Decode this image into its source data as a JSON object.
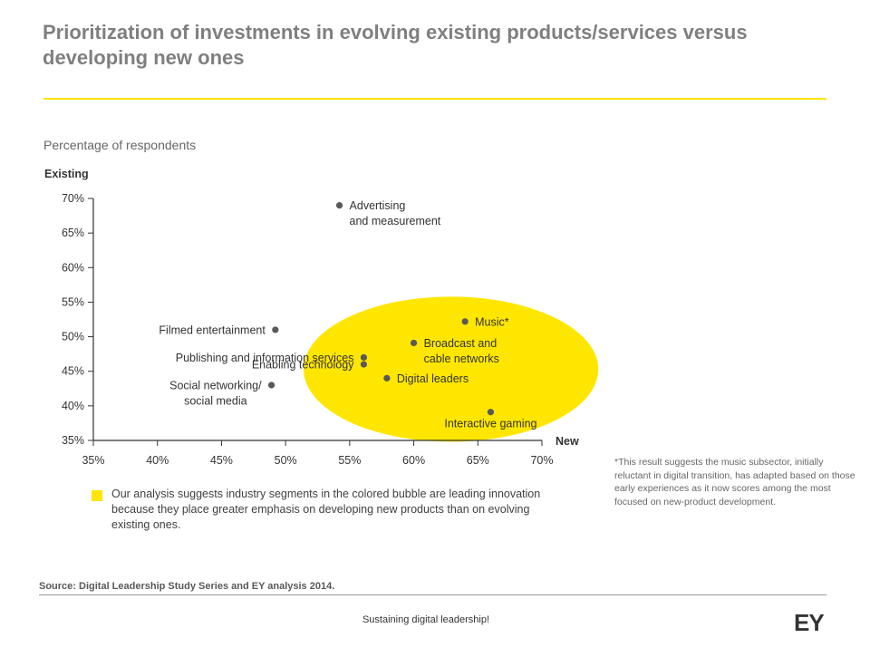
{
  "slide": {
    "title": "Prioritization of investments in evolving existing products/services versus developing new ones",
    "subtitle": "Percentage of respondents",
    "note": "*This result suggests the music subsector, initially reluctant in digital transition, has adapted based on those early experiences as it now scores among the most focused on new-product development.",
    "legend_text": "Our analysis suggests industry segments in the colored bubble are leading innovation because they place greater emphasis on developing new products than on evolving existing ones.",
    "source": "Source: Digital Leadership Study Series and EY analysis  2014.",
    "footer": "Sustaining digital leadership!",
    "logo": "EY"
  },
  "colors": {
    "accent": "#ffe600",
    "title": "#7f7f7f",
    "point": "#595959",
    "text": "#333333"
  },
  "chart_data": {
    "type": "scatter",
    "xlabel": "New",
    "ylabel": "Existing",
    "xlim": [
      35,
      70
    ],
    "ylim": [
      35,
      70
    ],
    "x_ticks": [
      "35%",
      "40%",
      "45%",
      "50%",
      "55%",
      "60%",
      "65%",
      "70%"
    ],
    "y_ticks": [
      "35%",
      "40%",
      "45%",
      "50%",
      "55%",
      "60%",
      "65%",
      "70%"
    ],
    "grid": false,
    "points": [
      {
        "name": "Advertising and measurement",
        "label_lines": [
          "Advertising",
          "and measurement"
        ],
        "x": 54.2,
        "y": 69.0,
        "label_side": "right",
        "in_bubble": false
      },
      {
        "name": "Filmed entertainment",
        "label_lines": [
          "Filmed entertainment"
        ],
        "x": 49.2,
        "y": 51.0,
        "label_side": "left",
        "in_bubble": false
      },
      {
        "name": "Publishing and information services",
        "label_lines": [
          "Publishing and information services"
        ],
        "x": 56.1,
        "y": 47.0,
        "label_side": "left",
        "in_bubble": false
      },
      {
        "name": "Enabling technology",
        "label_lines": [
          "Enabling technology"
        ],
        "x": 56.1,
        "y": 46.0,
        "label_side": "left",
        "in_bubble": false
      },
      {
        "name": "Social networking/ social media",
        "label_lines": [
          "Social networking/",
          "social media"
        ],
        "x": 48.9,
        "y": 43.0,
        "label_side": "left",
        "in_bubble": false
      },
      {
        "name": "Music*",
        "label_lines": [
          "Music*"
        ],
        "x": 64.0,
        "y": 52.2,
        "label_side": "right",
        "in_bubble": true
      },
      {
        "name": "Broadcast and cable networks",
        "label_lines": [
          "Broadcast and",
          "cable networks"
        ],
        "x": 60.0,
        "y": 49.1,
        "label_side": "right",
        "in_bubble": true
      },
      {
        "name": "Digital leaders",
        "label_lines": [
          "Digital leaders"
        ],
        "x": 57.9,
        "y": 44.0,
        "label_side": "right",
        "in_bubble": true
      },
      {
        "name": "Interactive gaming",
        "label_lines": [
          "Interactive gaming"
        ],
        "x": 66.0,
        "y": 39.1,
        "label_side": "below",
        "in_bubble": true
      }
    ]
  }
}
